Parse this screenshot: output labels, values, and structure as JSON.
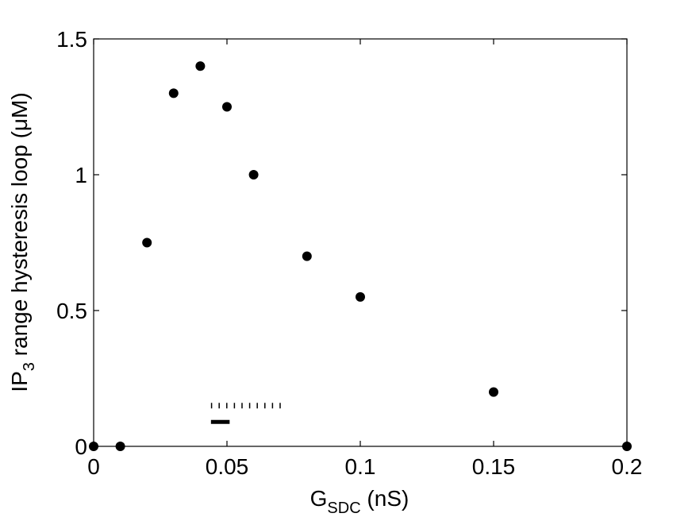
{
  "chart_data": {
    "type": "scatter",
    "xlabel": {
      "main": "G",
      "sub": "SDC",
      "rest": " (nS)"
    },
    "ylabel": {
      "main": "IP",
      "sub": "3",
      "rest": " range hysteresis loop (μM)"
    },
    "x": [
      0,
      0.01,
      0.02,
      0.03,
      0.04,
      0.05,
      0.06,
      0.08,
      0.1,
      0.15,
      0.2
    ],
    "values": [
      0,
      0,
      0.75,
      1.3,
      1.4,
      1.25,
      1.0,
      0.7,
      0.55,
      0.2,
      0
    ],
    "color": "#000000",
    "xlim": [
      0,
      0.2
    ],
    "xticks": [
      0,
      0.05,
      0.1,
      0.15,
      0.2
    ],
    "ylim": [
      0,
      1.5
    ],
    "yticks": [
      0,
      0.5,
      1,
      1.5
    ],
    "grid": false,
    "ranges": [
      {
        "x": [
          0.044,
          0.051
        ],
        "y": 0.09,
        "style": "solid"
      },
      {
        "x": [
          0.044,
          0.072
        ],
        "y": 0.15,
        "style": "dotted"
      }
    ]
  }
}
